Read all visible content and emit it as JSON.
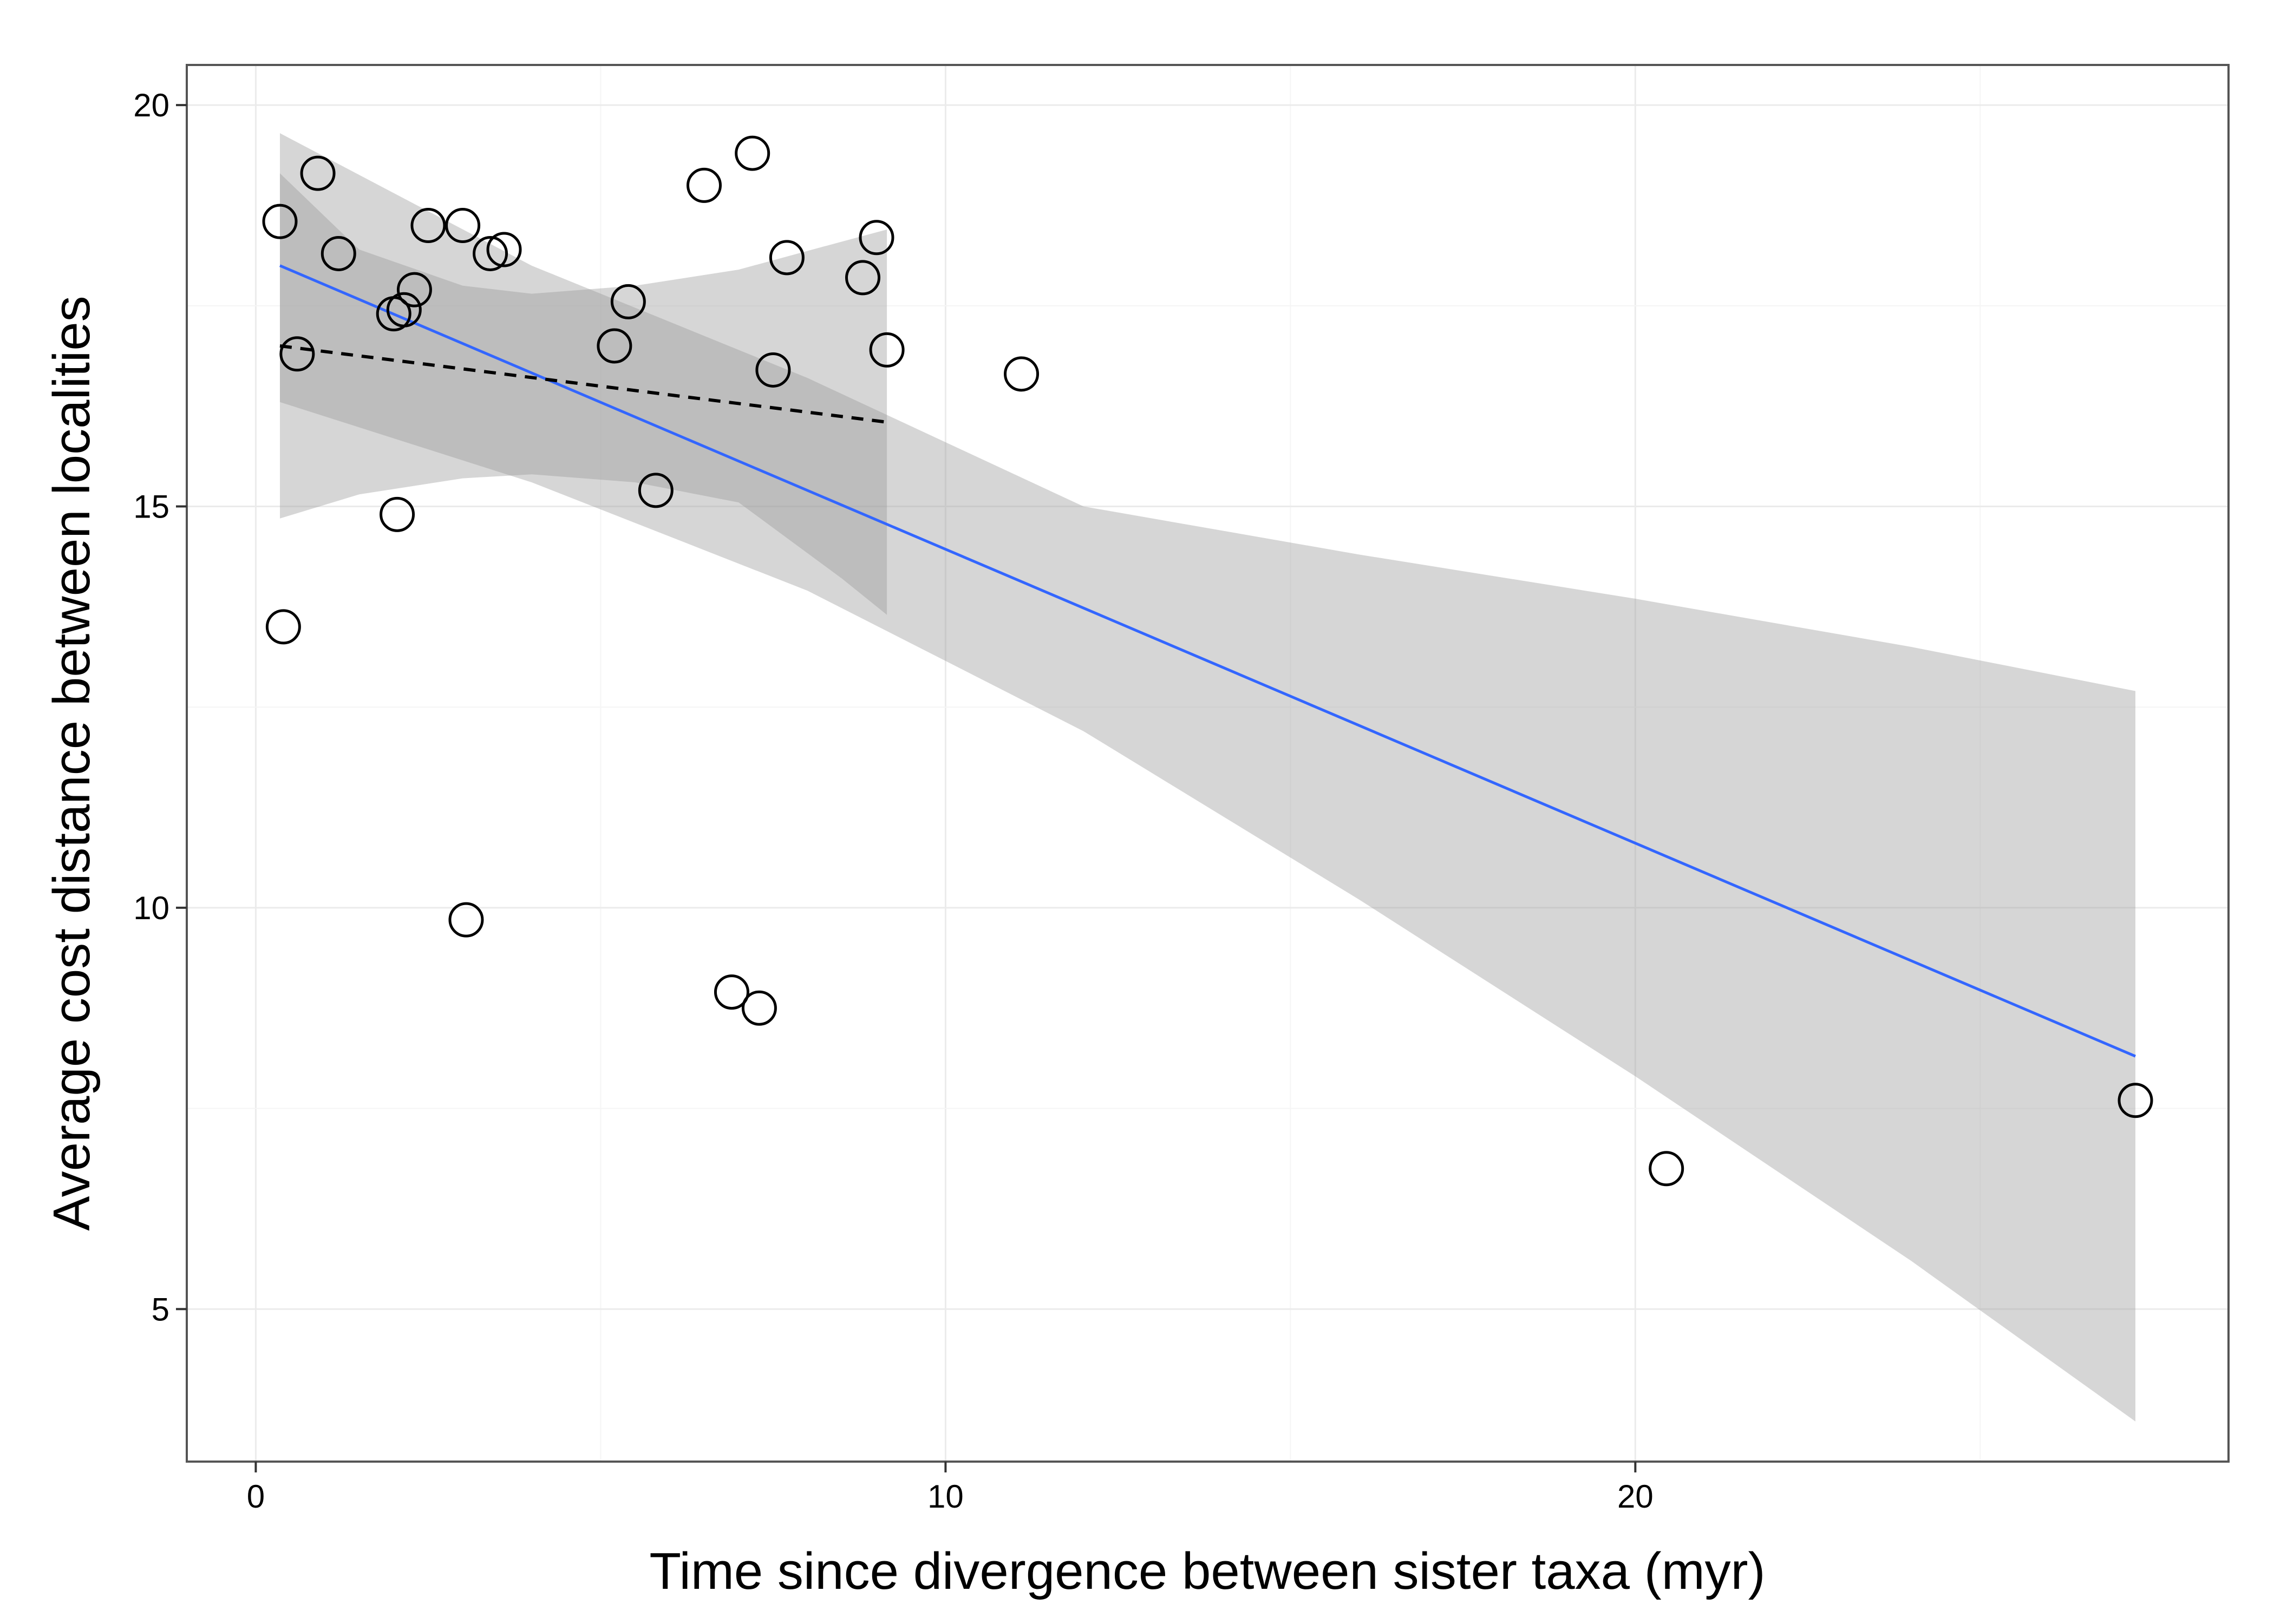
{
  "chart_data": {
    "type": "scatter",
    "title": "",
    "xlabel": "Time since divergence between sister taxa (myr)",
    "ylabel": "Average cost distance between localities",
    "xlim": [
      -1,
      28.6
    ],
    "ylim": [
      3.1,
      20.5
    ],
    "x_ticks": [
      0,
      10,
      20
    ],
    "y_ticks": [
      5,
      10,
      15,
      20
    ],
    "grid": true,
    "legend": "none",
    "points": [
      {
        "x": 0.35,
        "y": 18.55
      },
      {
        "x": 0.9,
        "y": 19.15
      },
      {
        "x": 1.2,
        "y": 18.15
      },
      {
        "x": 2.5,
        "y": 18.5
      },
      {
        "x": 3.0,
        "y": 18.5
      },
      {
        "x": 3.4,
        "y": 18.15
      },
      {
        "x": 3.6,
        "y": 18.2
      },
      {
        "x": 2.3,
        "y": 17.7
      },
      {
        "x": 2.0,
        "y": 17.4
      },
      {
        "x": 2.15,
        "y": 17.45
      },
      {
        "x": 0.6,
        "y": 16.9
      },
      {
        "x": 5.2,
        "y": 17.0
      },
      {
        "x": 5.4,
        "y": 17.55
      },
      {
        "x": 6.5,
        "y": 19.0
      },
      {
        "x": 7.2,
        "y": 19.4
      },
      {
        "x": 7.7,
        "y": 18.1
      },
      {
        "x": 8.8,
        "y": 17.85
      },
      {
        "x": 9.0,
        "y": 18.35
      },
      {
        "x": 9.15,
        "y": 16.95
      },
      {
        "x": 7.5,
        "y": 16.7
      },
      {
        "x": 11.1,
        "y": 16.65
      },
      {
        "x": 2.05,
        "y": 14.9
      },
      {
        "x": 5.8,
        "y": 15.2
      },
      {
        "x": 0.4,
        "y": 13.5
      },
      {
        "x": 3.05,
        "y": 9.85
      },
      {
        "x": 6.9,
        "y": 8.95
      },
      {
        "x": 7.3,
        "y": 8.75
      },
      {
        "x": 20.45,
        "y": 6.75
      },
      {
        "x": 27.25,
        "y": 7.6
      }
    ],
    "series": [
      {
        "type": "line",
        "style": "solid",
        "color": "#3366ff",
        "x": [
          0.35,
          27.25
        ],
        "y": [
          18.0,
          8.15
        ]
      },
      {
        "type": "line",
        "style": "dashed",
        "color": "#000000",
        "x": [
          0.35,
          9.15
        ],
        "y": [
          17.0,
          16.05
        ]
      }
    ],
    "bands": [
      {
        "color": "#999999",
        "opacity": 0.4,
        "x": [
          0.35,
          4,
          8,
          12,
          16,
          20,
          24,
          27.25
        ],
        "lower": [
          16.3,
          15.3,
          13.95,
          12.2,
          10.1,
          7.9,
          5.6,
          3.6
        ],
        "upper": [
          19.65,
          18.0,
          16.6,
          15.0,
          14.4,
          13.85,
          13.25,
          12.7
        ]
      },
      {
        "color": "#999999",
        "opacity": 0.4,
        "x": [
          0.35,
          1.5,
          3.0,
          4.0,
          5.5,
          7.0,
          8.5,
          9.15
        ],
        "lower": [
          14.85,
          15.15,
          15.35,
          15.4,
          15.3,
          15.05,
          14.1,
          13.65
        ],
        "upper": [
          19.15,
          18.2,
          17.75,
          17.65,
          17.75,
          17.95,
          18.3,
          18.45
        ]
      }
    ],
    "colors": {
      "panel_border": "#555555",
      "grid_major": "#ebebeb",
      "grid_minor": "#f5f5f5",
      "point_stroke": "#000000"
    }
  }
}
